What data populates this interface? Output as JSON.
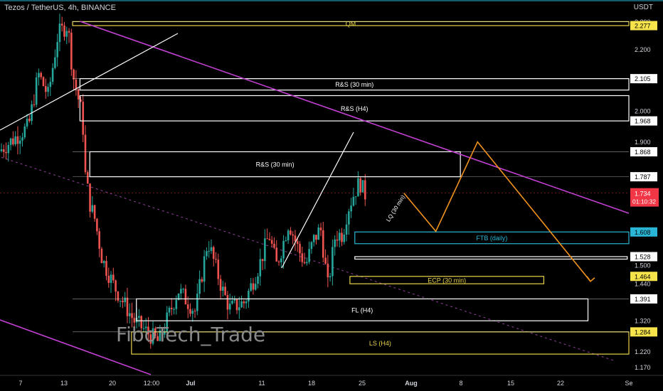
{
  "header": {
    "title": "Tezos / TetherUS, 4h, BINANCE",
    "unit": "USDT"
  },
  "watermark": "FiboTech_Trade",
  "colors": {
    "up": "#26a69a",
    "down": "#ef5350",
    "channel": "#c040d0",
    "projection": "#f0921e",
    "zone_white": "#ffffff",
    "zone_yellow": "#e6d34a",
    "zone_cyan": "#29b6d6",
    "price_tag": "#f23645"
  },
  "chart_data": {
    "type": "candlestick",
    "ylim": [
      1.15,
      2.36
    ],
    "y_ticks": [
      1.17,
      1.22,
      1.32,
      1.44,
      1.5,
      1.9,
      2.0,
      2.2,
      2.28
    ],
    "x_labels": [
      "7",
      "13",
      "20",
      "12:00",
      "Jul",
      "11",
      "18",
      "25",
      "Aug",
      "8",
      "15",
      "22",
      "Se"
    ],
    "series": [
      {
        "x": [
          0.0,
          1.2,
          1.6,
          2.0,
          2.4,
          2.8,
          3.0,
          3.2,
          3.4,
          3.5,
          3.7,
          3.9,
          4.2,
          4.7,
          5.5,
          6.5,
          7.3,
          8.0,
          8.5,
          9.1,
          9.4,
          10.0,
          10.6,
          11.0,
          11.3,
          11.5,
          11.8,
          12.2,
          12.5,
          12.8,
          13.1,
          13.4,
          13.7,
          14.0,
          14.2,
          14.5,
          14.7,
          14.9
        ],
        "y": [
          1.87,
          1.95,
          2.12,
          2.05,
          2.25,
          2.28,
          2.12,
          2.05,
          1.98,
          1.8,
          1.7,
          1.65,
          1.52,
          1.43,
          1.32,
          1.25,
          1.42,
          1.35,
          1.58,
          1.42,
          1.36,
          1.38,
          1.5,
          1.6,
          1.5,
          1.55,
          1.64,
          1.55,
          1.5,
          1.58,
          1.62,
          1.43,
          1.6,
          1.6,
          1.68,
          1.74,
          1.77,
          1.73
        ]
      }
    ],
    "price_labels": [
      {
        "value": "2.290",
        "y": 2.29,
        "style": "plain"
      },
      {
        "value": "2.277",
        "y": 2.277,
        "style": "yellow-box"
      },
      {
        "value": "2.200",
        "y": 2.2,
        "style": "plain"
      },
      {
        "value": "2.105",
        "y": 2.105,
        "style": "white-box"
      },
      {
        "value": "2.000",
        "y": 2.0,
        "style": "plain"
      },
      {
        "value": "1.968",
        "y": 1.968,
        "style": "white-box"
      },
      {
        "value": "1.900",
        "y": 1.9,
        "style": "plain"
      },
      {
        "value": "1.868",
        "y": 1.868,
        "style": "white-box"
      },
      {
        "value": "1.787",
        "y": 1.787,
        "style": "white-box"
      },
      {
        "value": "1.608",
        "y": 1.608,
        "style": "cyan-box"
      },
      {
        "value": "1.528",
        "y": 1.528,
        "style": "white-box"
      },
      {
        "value": "1.500",
        "y": 1.5,
        "style": "plain"
      },
      {
        "value": "1.464",
        "y": 1.464,
        "style": "yellow-box"
      },
      {
        "value": "1.440",
        "y": 1.44,
        "style": "plain"
      },
      {
        "value": "1.391",
        "y": 1.391,
        "style": "white-box"
      },
      {
        "value": "1.320",
        "y": 1.32,
        "style": "plain"
      },
      {
        "value": "1.284",
        "y": 1.284,
        "style": "yellow-box"
      },
      {
        "value": "1.220",
        "y": 1.22,
        "style": "plain"
      },
      {
        "value": "1.170",
        "y": 1.17,
        "style": "plain"
      }
    ],
    "current_price": {
      "value": "1.734",
      "y": 1.734,
      "countdown": "01:10:32"
    },
    "zones": [
      {
        "label": "QM",
        "x0": 2.9,
        "x1": 31.5,
        "y0": 2.277,
        "y1": 2.29,
        "color": "yellow"
      },
      {
        "label": "R&S (30 min)",
        "x0": 3.2,
        "x1": 31.5,
        "y0": 2.068,
        "y1": 2.105,
        "color": "white"
      },
      {
        "label": "R&S (H4)",
        "x0": 3.2,
        "x1": 28.7,
        "y0": 1.968,
        "y1": 2.05,
        "color": "white"
      },
      {
        "label": "R&S (30 min)",
        "x0": 3.6,
        "x1": 18.7,
        "y0": 1.787,
        "y1": 1.868,
        "color": "white"
      },
      {
        "label": "FTB (daily)",
        "x0": 14.4,
        "x1": 31.5,
        "y0": 1.57,
        "y1": 1.608,
        "color": "cyan"
      },
      {
        "label": "",
        "x0": 14.4,
        "x1": 25.5,
        "y0": 1.52,
        "y1": 1.528,
        "color": "white"
      },
      {
        "label": "ECP (30 min)",
        "x0": 14.2,
        "x1": 22.1,
        "y0": 1.44,
        "y1": 1.464,
        "color": "yellow"
      },
      {
        "label": "FL (H4)",
        "x0": 5.5,
        "x1": 23.9,
        "y0": 1.32,
        "y1": 1.391,
        "color": "white"
      },
      {
        "label": "LS (H4)",
        "x0": 5.3,
        "x1": 27.9,
        "y0": 1.212,
        "y1": 1.284,
        "color": "yellow"
      }
    ],
    "annotations": [
      {
        "text": "LQ (30 min)",
        "x": 15.8,
        "y": 1.64
      }
    ],
    "projection": {
      "x": [
        16.4,
        17.7,
        19.4,
        24.0
      ],
      "y": [
        1.734,
        1.61,
        1.9,
        1.448
      ]
    }
  }
}
